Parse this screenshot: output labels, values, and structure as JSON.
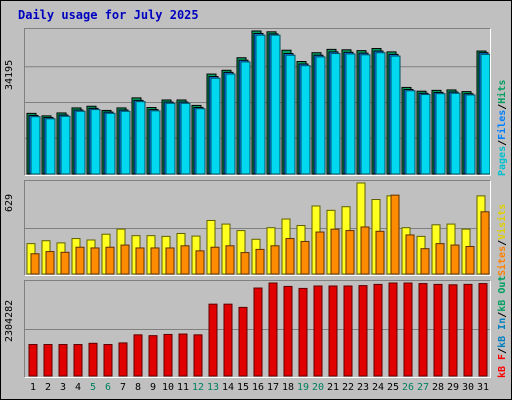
{
  "title": "Daily usage for July 2025",
  "colors": {
    "pages": "#00c0d0",
    "files": "#0080ff",
    "hits": "#00a060",
    "visits": "#ffff00",
    "sites": "#ff8000",
    "kb_in": "#0080c0",
    "kb_out": "#00a060",
    "kb_f": "#ff0000",
    "weekend": "#008060",
    "weekday": "#000000"
  },
  "chart_data": [
    {
      "type": "bar",
      "name": "hits",
      "categories": [
        "1",
        "2",
        "3",
        "4",
        "5",
        "6",
        "7",
        "8",
        "9",
        "10",
        "11",
        "12",
        "13",
        "14",
        "15",
        "16",
        "17",
        "18",
        "19",
        "20",
        "21",
        "22",
        "23",
        "24",
        "25",
        "26",
        "27",
        "28",
        "29",
        "30",
        "31"
      ],
      "ymax_label": "34195",
      "ymax": 34195,
      "series": [
        {
          "name": "Hits",
          "values": [
            14500,
            13900,
            14600,
            15800,
            16200,
            15200,
            15800,
            18200,
            15900,
            17700,
            17700,
            16400,
            23900,
            24800,
            27800,
            34195,
            34000,
            29600,
            26900,
            29000,
            29800,
            29700,
            29500,
            30000,
            29200,
            20700,
            19800,
            20000,
            20100,
            19700,
            29400
          ]
        },
        {
          "name": "Files",
          "values": [
            14000,
            13500,
            14100,
            15300,
            15700,
            14800,
            15300,
            17600,
            15400,
            17200,
            17200,
            15900,
            23300,
            24300,
            27200,
            33600,
            33500,
            28800,
            26300,
            28400,
            29200,
            29100,
            28900,
            29400,
            28600,
            20200,
            19300,
            19500,
            19600,
            19200,
            29000
          ]
        },
        {
          "name": "Pages",
          "values": [
            13700,
            13200,
            13800,
            15000,
            15400,
            14500,
            15000,
            17300,
            15100,
            16900,
            16900,
            15600,
            22900,
            23900,
            26800,
            33200,
            33200,
            28400,
            25900,
            28000,
            28800,
            28700,
            28500,
            29000,
            28200,
            19900,
            19000,
            19200,
            19300,
            18900,
            28600
          ]
        }
      ]
    },
    {
      "type": "bar",
      "name": "visits",
      "categories": [
        "1",
        "2",
        "3",
        "4",
        "5",
        "6",
        "7",
        "8",
        "9",
        "10",
        "11",
        "12",
        "13",
        "14",
        "15",
        "16",
        "17",
        "18",
        "19",
        "20",
        "21",
        "22",
        "23",
        "24",
        "25",
        "26",
        "27",
        "28",
        "29",
        "30",
        "31"
      ],
      "ymax_label": "629",
      "ymax": 629,
      "series": [
        {
          "name": "Visits",
          "values": [
            210,
            230,
            215,
            245,
            235,
            275,
            310,
            265,
            265,
            260,
            280,
            262,
            370,
            345,
            300,
            240,
            320,
            380,
            335,
            470,
            440,
            465,
            629,
            515,
            540,
            320,
            260,
            340,
            345,
            310,
            540
          ]
        },
        {
          "name": "Sites",
          "values": [
            140,
            155,
            150,
            185,
            180,
            185,
            200,
            180,
            180,
            180,
            195,
            160,
            185,
            195,
            148,
            170,
            195,
            245,
            225,
            290,
            310,
            300,
            325,
            295,
            545,
            270,
            175,
            210,
            200,
            190,
            430
          ]
        }
      ]
    },
    {
      "type": "bar",
      "name": "kbytes",
      "categories": [
        "1",
        "2",
        "3",
        "4",
        "5",
        "6",
        "7",
        "8",
        "9",
        "10",
        "11",
        "12",
        "13",
        "14",
        "15",
        "16",
        "17",
        "18",
        "19",
        "20",
        "21",
        "22",
        "23",
        "24",
        "25",
        "26",
        "27",
        "28",
        "29",
        "30",
        "31"
      ],
      "ymax_label": "2304282",
      "ymax": 2304282,
      "series": [
        {
          "name": "KB F",
          "values": [
            780000,
            780000,
            780000,
            780000,
            810000,
            780000,
            820000,
            1020000,
            1000000,
            1030000,
            1040000,
            1020000,
            1780000,
            1780000,
            1700000,
            2180000,
            2304282,
            2220000,
            2170000,
            2230000,
            2230000,
            2230000,
            2240000,
            2270000,
            2304282,
            2304282,
            2290000,
            2270000,
            2260000,
            2270000,
            2290000
          ]
        }
      ]
    }
  ],
  "legends": {
    "top": {
      "pages": "Pages",
      "sep1": "/",
      "files": "Files",
      "sep2": "/",
      "hits": "Hits"
    },
    "mid": {
      "sites": "Sites",
      "sep": "/",
      "visits": "Visits"
    },
    "bot": {
      "kbf": "kB F",
      "sep1": "/",
      "kbin": "kB In",
      "sep2": "/",
      "kbout": "kB Out"
    }
  },
  "weekend_days": [
    5,
    6,
    12,
    13,
    19,
    20,
    26,
    27
  ]
}
